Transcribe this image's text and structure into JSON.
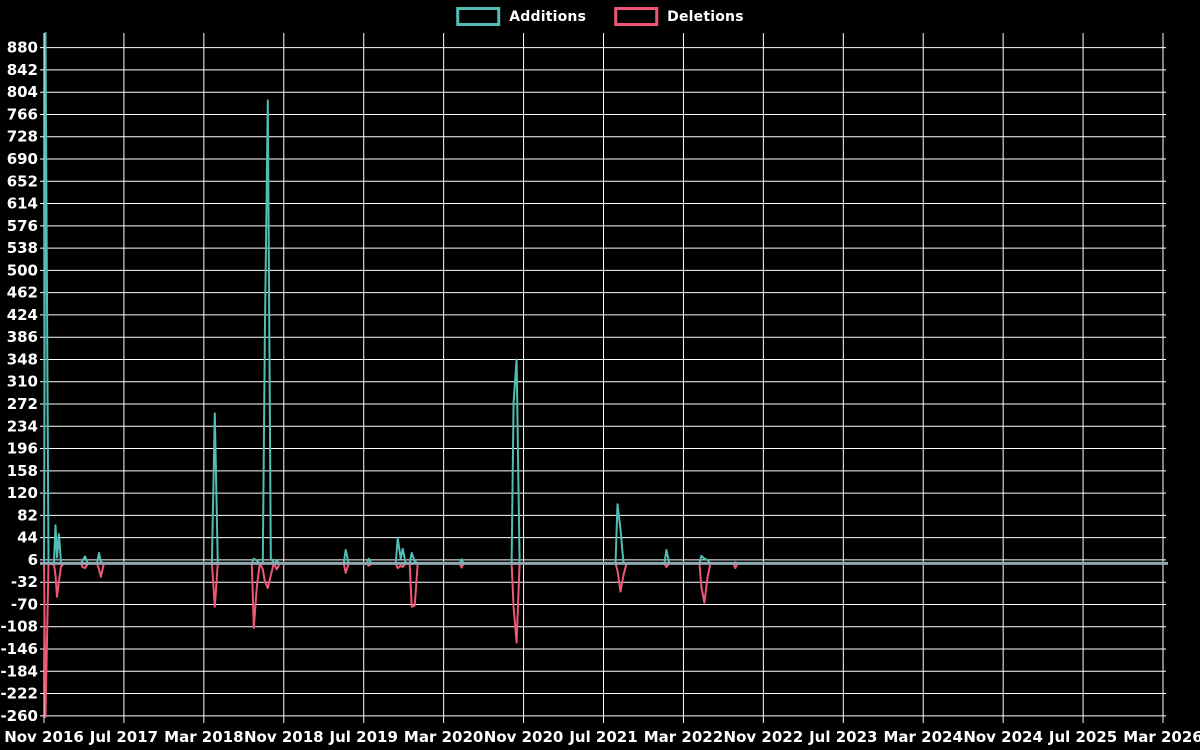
{
  "legend": {
    "items": [
      {
        "label": "Additions",
        "color": "#52BDB6"
      },
      {
        "label": "Deletions",
        "color": "#EF5777"
      }
    ]
  },
  "colors": {
    "background": "#000000",
    "grid": "#FFFFFF",
    "tick_text": "#FFFFFF",
    "zero_line": "#8FA7B0",
    "additions": "#52BDB6",
    "deletions": "#EF5777"
  },
  "chart_data": {
    "type": "line",
    "title": "",
    "xlabel": "",
    "ylabel": "",
    "legend_position": "top-center",
    "grid": true,
    "background": "#000000",
    "y_ticks": [
      880,
      842,
      804,
      766,
      728,
      690,
      652,
      614,
      576,
      538,
      500,
      462,
      424,
      386,
      348,
      310,
      272,
      234,
      196,
      158,
      120,
      82,
      44,
      6,
      -32,
      -70,
      -108,
      -146,
      -184,
      -222,
      -260
    ],
    "ylim": [
      -262,
      905
    ],
    "x_tick_labels": [
      "Nov 2016",
      "Jul 2017",
      "Mar 2018",
      "Nov 2018",
      "Jul 2019",
      "Mar 2020",
      "Nov 2020",
      "Jul 2021",
      "Mar 2022",
      "Nov 2022",
      "Jul 2023",
      "Mar 2024",
      "Nov 2024",
      "Jul 2025",
      "Mar 2026"
    ],
    "x_tick_months": [
      0,
      8,
      16,
      24,
      32,
      40,
      48,
      56,
      64,
      72,
      80,
      88,
      96,
      104,
      112
    ],
    "xlim": [
      0,
      112.3
    ],
    "x_unit": "months since Nov 2016",
    "x": [
      0.0,
      0.15,
      0.45,
      1.0,
      1.15,
      1.3,
      1.5,
      1.7,
      2.0,
      3.7,
      3.85,
      4.1,
      4.4,
      5.3,
      5.5,
      5.7,
      6.0,
      16.8,
      17.1,
      17.4,
      20.8,
      21.0,
      21.3,
      21.6,
      21.9,
      22.1,
      22.4,
      22.7,
      23.0,
      23.3,
      23.6,
      30.0,
      30.2,
      30.5,
      32.3,
      32.5,
      32.8,
      35.2,
      35.4,
      35.7,
      35.9,
      36.2,
      36.6,
      36.8,
      37.1,
      37.4,
      41.6,
      41.8,
      42.0,
      46.8,
      47.0,
      47.3,
      47.6,
      57.2,
      57.4,
      57.7,
      58.0,
      58.3,
      62.1,
      62.3,
      62.6,
      65.6,
      65.8,
      66.1,
      66.4,
      66.7,
      69.0,
      69.2,
      69.4,
      112.3
    ],
    "series": [
      {
        "name": "Additions",
        "color": "#52BDB6",
        "values": [
          0,
          905,
          0,
          2,
          65,
          10,
          50,
          0,
          0,
          0,
          5,
          12,
          0,
          0,
          18,
          3,
          0,
          0,
          256,
          0,
          0,
          8,
          5,
          0,
          0,
          380,
          790,
          10,
          0,
          4,
          0,
          0,
          23,
          0,
          0,
          8,
          0,
          0,
          43,
          8,
          25,
          0,
          0,
          18,
          4,
          0,
          0,
          7,
          0,
          0,
          275,
          348,
          0,
          0,
          101,
          58,
          0,
          0,
          0,
          23,
          0,
          0,
          13,
          8,
          6,
          0,
          0,
          2,
          0,
          0
        ]
      },
      {
        "name": "Deletions",
        "color": "#EF5777",
        "values": [
          0,
          -262,
          0,
          -2,
          -20,
          -57,
          -30,
          -5,
          0,
          0,
          -6,
          -8,
          0,
          0,
          -10,
          -23,
          0,
          0,
          -74,
          0,
          0,
          -110,
          -40,
          0,
          -10,
          -30,
          -42,
          -20,
          0,
          -10,
          0,
          0,
          -16,
          0,
          0,
          -4,
          0,
          0,
          -8,
          -4,
          -6,
          0,
          0,
          -74,
          -72,
          0,
          0,
          -7,
          0,
          0,
          -75,
          -135,
          0,
          0,
          -12,
          -48,
          -20,
          0,
          0,
          -6,
          0,
          0,
          -40,
          -67,
          -25,
          0,
          0,
          -8,
          0,
          0
        ]
      }
    ],
    "zero_line_value": 0
  }
}
